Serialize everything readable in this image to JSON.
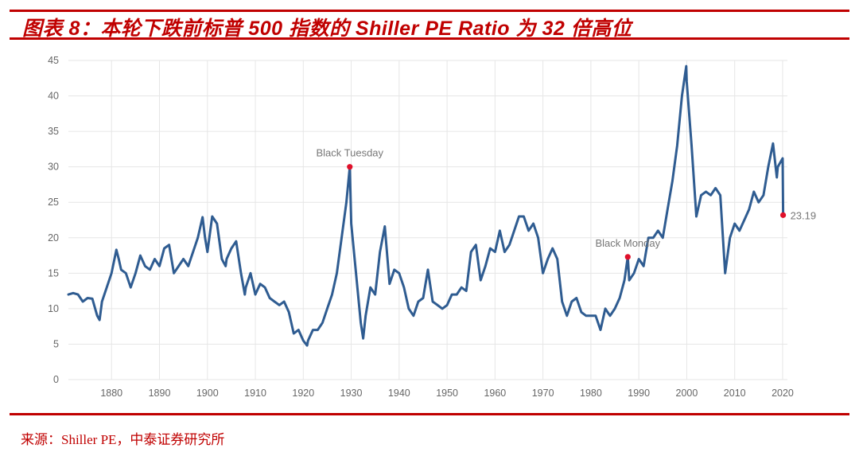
{
  "figure": {
    "title": "图表 8：本轮下跌前标普 500 指数的 Shiller PE Ratio 为 32 倍高位",
    "source": "来源：Shiller PE，中泰证券研究所"
  },
  "colors": {
    "accent": "#c00000",
    "line": "#2f5c91",
    "marker": "#e0102a",
    "grid": "#e6e6e6",
    "tick": "#666666"
  },
  "chart_data": {
    "type": "line",
    "title": "",
    "xlabel": "",
    "ylabel": "",
    "xlim": [
      1871,
      2021
    ],
    "ylim": [
      0,
      45
    ],
    "grid": true,
    "x_ticks": [
      1880,
      1890,
      1900,
      1910,
      1920,
      1930,
      1940,
      1950,
      1960,
      1970,
      1980,
      1990,
      2000,
      2010,
      2020
    ],
    "x_tick_labels": [
      "1880",
      "1890",
      "1900",
      "1910",
      "1920",
      "1930",
      "1940",
      "1950",
      "1960",
      "1970",
      "1980",
      "1990",
      "2000",
      "2010",
      "2020"
    ],
    "y_ticks": [
      0,
      5,
      10,
      15,
      20,
      25,
      30,
      35,
      40,
      45
    ],
    "y_tick_labels": [
      "0",
      "5",
      "10",
      "15",
      "20",
      "25",
      "30",
      "35",
      "40",
      "45"
    ],
    "series": [
      {
        "name": "Shiller PE Ratio",
        "x": [
          1871,
          1872,
          1873,
          1874,
          1875,
          1876,
          1877,
          1877.5,
          1878,
          1879,
          1880,
          1881,
          1881.5,
          1882,
          1883,
          1884,
          1885,
          1886,
          1887,
          1888,
          1889,
          1890,
          1891,
          1892,
          1893,
          1894,
          1895,
          1896,
          1897,
          1898,
          1899,
          1899.5,
          1900,
          1901,
          1901.5,
          1902,
          1903,
          1903.8,
          1904,
          1905,
          1906,
          1907,
          1907.8,
          1908,
          1909,
          1910,
          1911,
          1912,
          1913,
          1914,
          1915,
          1916,
          1917,
          1918,
          1919,
          1920,
          1920.8,
          1921,
          1922,
          1923,
          1924,
          1925,
          1926,
          1927,
          1928,
          1929,
          1929.7,
          1930,
          1931,
          1932,
          1932.5,
          1933,
          1934,
          1935,
          1936,
          1937,
          1938,
          1939,
          1940,
          1941,
          1942,
          1943,
          1944,
          1945,
          1946,
          1947,
          1948,
          1949,
          1950,
          1951,
          1952,
          1953,
          1954,
          1955,
          1956,
          1957,
          1958,
          1959,
          1960,
          1961,
          1962,
          1963,
          1964,
          1965,
          1966,
          1967,
          1968,
          1969,
          1970,
          1971,
          1972,
          1973,
          1974,
          1975,
          1976,
          1977,
          1978,
          1979,
          1980,
          1981,
          1982,
          1983,
          1984,
          1985,
          1986,
          1987,
          1987.7,
          1988,
          1989,
          1990,
          1991,
          1992,
          1993,
          1994,
          1995,
          1996,
          1997,
          1998,
          1999,
          1999.9,
          2000,
          2001,
          2002,
          2003,
          2004,
          2005,
          2006,
          2007,
          2008,
          2009,
          2010,
          2011,
          2012,
          2013,
          2014,
          2015,
          2016,
          2017,
          2018,
          2018.8,
          2019,
          2020,
          2020.1
        ],
        "y": [
          12.0,
          12.2,
          12.0,
          11.0,
          11.5,
          11.4,
          9.0,
          8.4,
          11.0,
          13.0,
          15.0,
          18.3,
          17.0,
          15.5,
          15.0,
          13.0,
          15.0,
          17.5,
          16.0,
          15.5,
          17.0,
          16.0,
          18.5,
          19.0,
          15.0,
          16.0,
          17.0,
          16.0,
          18.0,
          20.0,
          22.9,
          20.0,
          18.0,
          23.0,
          22.5,
          22.0,
          17.0,
          16.0,
          17.0,
          18.5,
          19.5,
          15.0,
          12.0,
          13.0,
          15.0,
          12.0,
          13.5,
          13.0,
          11.5,
          11.0,
          10.5,
          11.0,
          9.5,
          6.5,
          7.0,
          5.5,
          4.8,
          5.5,
          7.0,
          7.0,
          8.0,
          10.0,
          12.0,
          15.0,
          20.0,
          25.0,
          30.0,
          22.0,
          15.0,
          8.0,
          5.8,
          9.0,
          13.0,
          12.0,
          18.0,
          21.6,
          13.5,
          15.5,
          15.0,
          13.0,
          10.0,
          9.0,
          11.0,
          11.5,
          15.5,
          11.0,
          10.5,
          10.0,
          10.5,
          12.0,
          12.0,
          13.0,
          12.5,
          18.0,
          19.0,
          14.0,
          16.0,
          18.5,
          18.0,
          21.0,
          18.0,
          19.0,
          21.0,
          23.0,
          23.0,
          21.0,
          22.0,
          20.0,
          15.0,
          17.0,
          18.5,
          17.0,
          11.0,
          9.0,
          11.0,
          11.5,
          9.5,
          9.0,
          9.0,
          9.0,
          7.0,
          10.0,
          9.0,
          10.0,
          11.5,
          14.0,
          17.3,
          14.0,
          15.0,
          17.0,
          16.0,
          20.0,
          20.0,
          21.0,
          20.0,
          24.0,
          28.0,
          33.0,
          40.0,
          44.2,
          42.0,
          33.0,
          23.0,
          26.0,
          26.5,
          26.0,
          27.0,
          26.0,
          15.0,
          20.0,
          22.0,
          21.0,
          22.5,
          24.0,
          26.5,
          25.0,
          26.0,
          30.0,
          33.3,
          28.5,
          30.0,
          31.2,
          23.19
        ]
      }
    ],
    "annotations": [
      {
        "label": "Black Tuesday",
        "x": 1929.7,
        "y": 30.0,
        "position": "above"
      },
      {
        "label": "Black Monday",
        "x": 1987.7,
        "y": 17.3,
        "position": "above"
      },
      {
        "label": "23.19",
        "x": 2020.1,
        "y": 23.19,
        "position": "right"
      }
    ]
  }
}
